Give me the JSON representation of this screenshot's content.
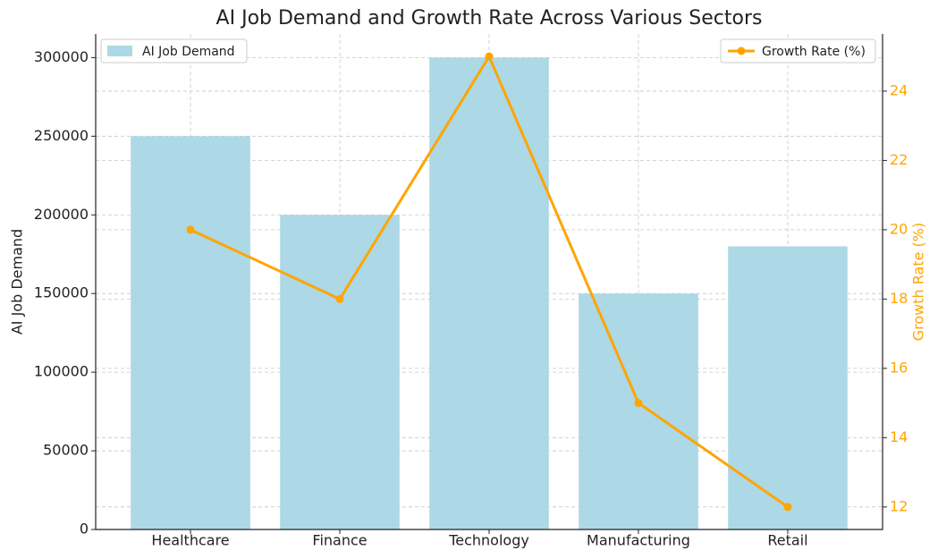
{
  "chart_data": {
    "type": "bar",
    "title": "AI Job Demand and Growth Rate Across Various Sectors",
    "ylabel": "AI Job Demand",
    "y2label": "Growth Rate (%)",
    "categories": [
      "Healthcare",
      "Finance",
      "Technology",
      "Manufacturing",
      "Retail"
    ],
    "series": [
      {
        "name": "AI Job Demand",
        "type": "bar",
        "color": "#add8e6",
        "values": [
          250000,
          200000,
          300000,
          150000,
          180000
        ],
        "legend": "upper left"
      },
      {
        "name": "Growth Rate (%)",
        "type": "line",
        "color": "#ffa500",
        "axis": "y2",
        "values": [
          20,
          18,
          25,
          15,
          12
        ],
        "legend": "upper right"
      }
    ],
    "ylim": [
      0,
      315000
    ],
    "yticks": [
      0,
      50000,
      100000,
      150000,
      200000,
      250000,
      300000
    ],
    "y2lim": [
      11.35,
      25.65
    ],
    "y2ticks": [
      12,
      14,
      16,
      18,
      20,
      22,
      24
    ],
    "grid": true
  }
}
